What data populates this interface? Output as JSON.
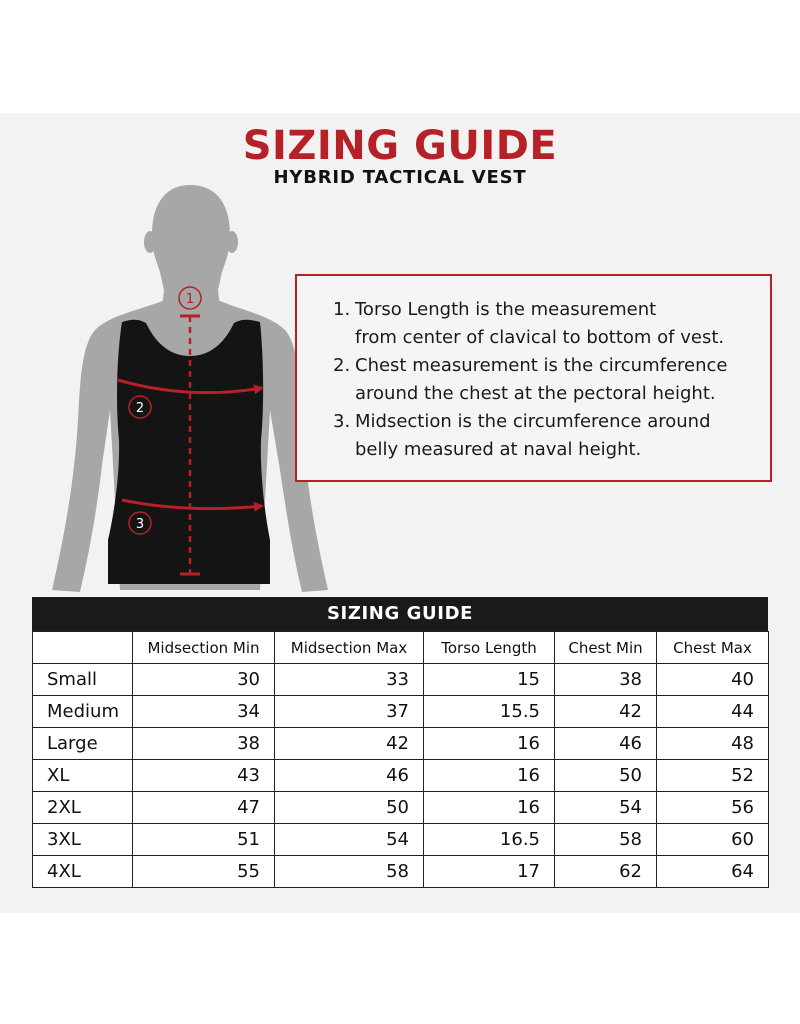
{
  "header": {
    "title": "SIZING GUIDE",
    "subtitle": "HYBRID TACTICAL VEST"
  },
  "colors": {
    "accent": "#b52126",
    "vest": "#141414",
    "body": "#a7a7a7",
    "panel_bg": "#f2f2f2"
  },
  "figure": {
    "markers": [
      "1",
      "2",
      "3"
    ]
  },
  "notes": {
    "items": [
      {
        "num": "1.",
        "line1": "Torso Length is the measurement",
        "line2": "from center of clavical to bottom of vest."
      },
      {
        "num": "2.",
        "line1": "Chest measurement is the circumference",
        "line2": "around the chest at the pectoral height."
      },
      {
        "num": "3.",
        "line1": "Midsection is the circumference around",
        "line2": "belly measured at naval height."
      }
    ]
  },
  "table": {
    "title": "SIZING GUIDE",
    "headers": [
      "",
      "Midsection Min",
      "Midsection Max",
      "Torso Length",
      "Chest Min",
      "Chest Max"
    ],
    "rows": [
      {
        "size": "Small",
        "values": [
          "30",
          "33",
          "15",
          "38",
          "40"
        ]
      },
      {
        "size": "Medium",
        "values": [
          "34",
          "37",
          "15.5",
          "42",
          "44"
        ]
      },
      {
        "size": "Large",
        "values": [
          "38",
          "42",
          "16",
          "46",
          "48"
        ]
      },
      {
        "size": "XL",
        "values": [
          "43",
          "46",
          "16",
          "50",
          "52"
        ]
      },
      {
        "size": "2XL",
        "values": [
          "47",
          "50",
          "16",
          "54",
          "56"
        ]
      },
      {
        "size": "3XL",
        "values": [
          "51",
          "54",
          "16.5",
          "58",
          "60"
        ]
      },
      {
        "size": "4XL",
        "values": [
          "55",
          "58",
          "17",
          "62",
          "64"
        ]
      }
    ]
  }
}
